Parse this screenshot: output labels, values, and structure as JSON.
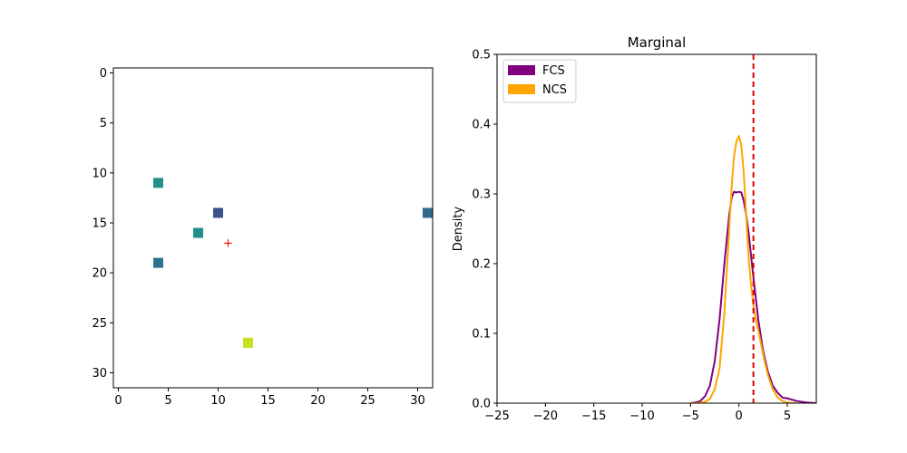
{
  "chart_data": [
    {
      "type": "heatmap",
      "title": "",
      "xlabel": "",
      "ylabel": "",
      "xlim": [
        -0.5,
        31.5
      ],
      "ylim": [
        31.5,
        -0.5
      ],
      "y_inverted": true,
      "xticks": [
        0,
        5,
        10,
        15,
        20,
        25,
        30
      ],
      "yticks": [
        0,
        5,
        10,
        15,
        20,
        25,
        30
      ],
      "grid": false,
      "cells": [
        {
          "x": 4,
          "y": 11,
          "color": "#21908d"
        },
        {
          "x": 10,
          "y": 14,
          "color": "#3b528b"
        },
        {
          "x": 31,
          "y": 14,
          "color": "#31688e"
        },
        {
          "x": 8,
          "y": 16,
          "color": "#21908d"
        },
        {
          "x": 4,
          "y": 19,
          "color": "#2c728e"
        },
        {
          "x": 13,
          "y": 27,
          "color": "#c8e020"
        }
      ],
      "marker": {
        "x": 11,
        "y": 17,
        "symbol": "+",
        "color": "#ff0000"
      }
    },
    {
      "type": "line",
      "title": "Marginal",
      "xlabel": "",
      "ylabel": "Density",
      "xlim": [
        -25,
        8
      ],
      "ylim": [
        0,
        0.5
      ],
      "xticks": [
        -25,
        -20,
        -15,
        -10,
        -5,
        0,
        5
      ],
      "yticks": [
        0.0,
        0.1,
        0.2,
        0.3,
        0.4,
        0.5
      ],
      "grid": false,
      "legend_position": "top-left",
      "vline": {
        "x": 1.5,
        "color": "#dd0000",
        "style": "dashed"
      },
      "series": [
        {
          "name": "FCS",
          "color": "#800080",
          "x": [
            -5,
            -4.5,
            -4,
            -3.5,
            -3,
            -2.5,
            -2,
            -1.5,
            -1,
            -0.75,
            -0.5,
            -0.25,
            0,
            0.25,
            0.5,
            0.75,
            1,
            1.5,
            2,
            2.5,
            3,
            3.5,
            4,
            4.5,
            5,
            5.5,
            6,
            6.5,
            7,
            7.5,
            8
          ],
          "y": [
            0.0,
            0.001,
            0.003,
            0.01,
            0.025,
            0.06,
            0.12,
            0.2,
            0.27,
            0.295,
            0.303,
            0.302,
            0.303,
            0.302,
            0.29,
            0.27,
            0.245,
            0.18,
            0.12,
            0.075,
            0.045,
            0.025,
            0.015,
            0.008,
            0.007,
            0.005,
            0.003,
            0.002,
            0.001,
            0.0005,
            0.0
          ]
        },
        {
          "name": "NCS",
          "color": "#ffa500",
          "x": [
            -5,
            -4.5,
            -4,
            -3.5,
            -3,
            -2.5,
            -2,
            -1.5,
            -1,
            -0.75,
            -0.5,
            -0.25,
            0,
            0.25,
            0.5,
            0.75,
            1,
            1.25,
            1.5,
            1.75,
            2,
            2.5,
            3,
            3.5,
            4,
            4.5,
            5,
            5.5,
            6
          ],
          "y": [
            0.0,
            0.0,
            0.0005,
            0.002,
            0.006,
            0.02,
            0.05,
            0.13,
            0.25,
            0.31,
            0.355,
            0.375,
            0.383,
            0.37,
            0.33,
            0.27,
            0.21,
            0.17,
            0.14,
            0.12,
            0.105,
            0.07,
            0.04,
            0.02,
            0.008,
            0.003,
            0.001,
            0.0003,
            0.0
          ]
        }
      ]
    }
  ]
}
